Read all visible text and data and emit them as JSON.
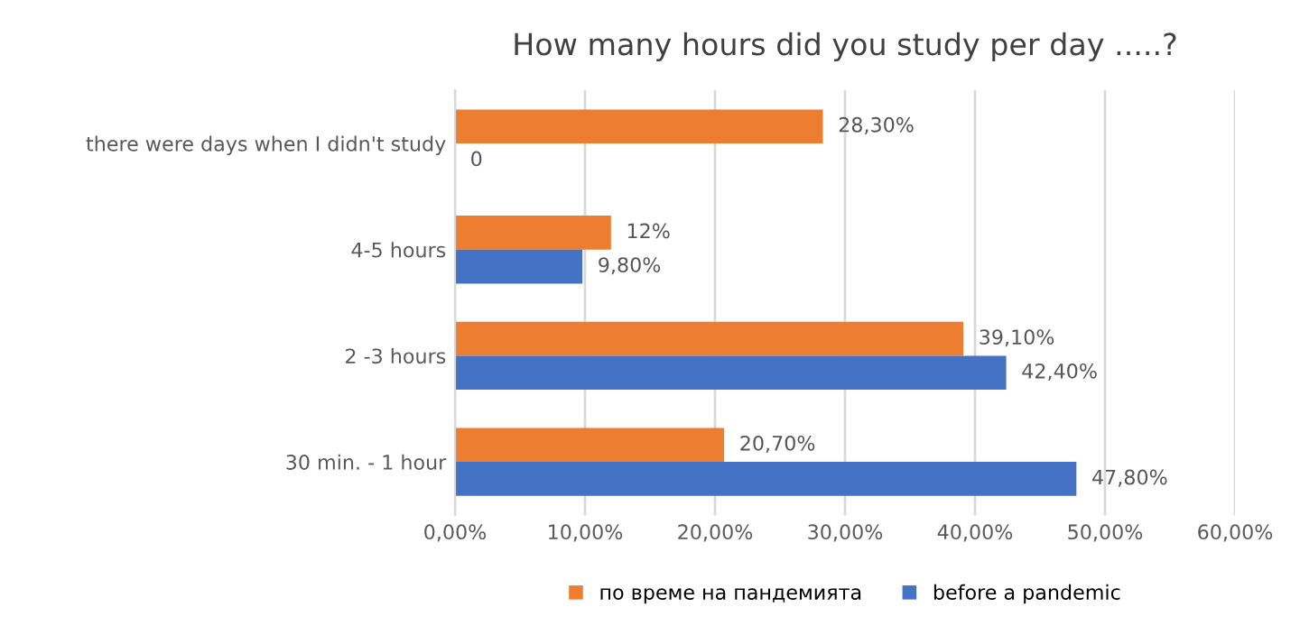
{
  "chart_data": {
    "type": "bar",
    "orientation": "horizontal",
    "title": "How many hours did you study per day .....?",
    "categories": [
      "there were days when I didn't study",
      "4-5 hours",
      "2 -3 hours",
      "30 min. - 1 hour"
    ],
    "series": [
      {
        "name": "по време на пандемията",
        "color": "#ed7d31",
        "values": [
          28.3,
          12,
          39.1,
          20.7
        ],
        "value_labels": [
          "28,30%",
          "12%",
          "39,10%",
          "20,70%"
        ]
      },
      {
        "name": "before a pandemic",
        "color": "#4472c4",
        "values": [
          0,
          9.8,
          42.4,
          47.8
        ],
        "value_labels": [
          "0",
          "9,80%",
          "42,40%",
          "47,80%"
        ]
      }
    ],
    "xlim": [
      0,
      60
    ],
    "xticks": [
      {
        "value": 0,
        "label": "0,00%"
      },
      {
        "value": 10,
        "label": "10,00%"
      },
      {
        "value": 20,
        "label": "20,00%"
      },
      {
        "value": 30,
        "label": "30,00%"
      },
      {
        "value": 40,
        "label": "40,00%"
      },
      {
        "value": 50,
        "label": "50,00%"
      },
      {
        "value": 60,
        "label": "60,00%"
      }
    ],
    "grid": "x",
    "legend": "bottom"
  }
}
